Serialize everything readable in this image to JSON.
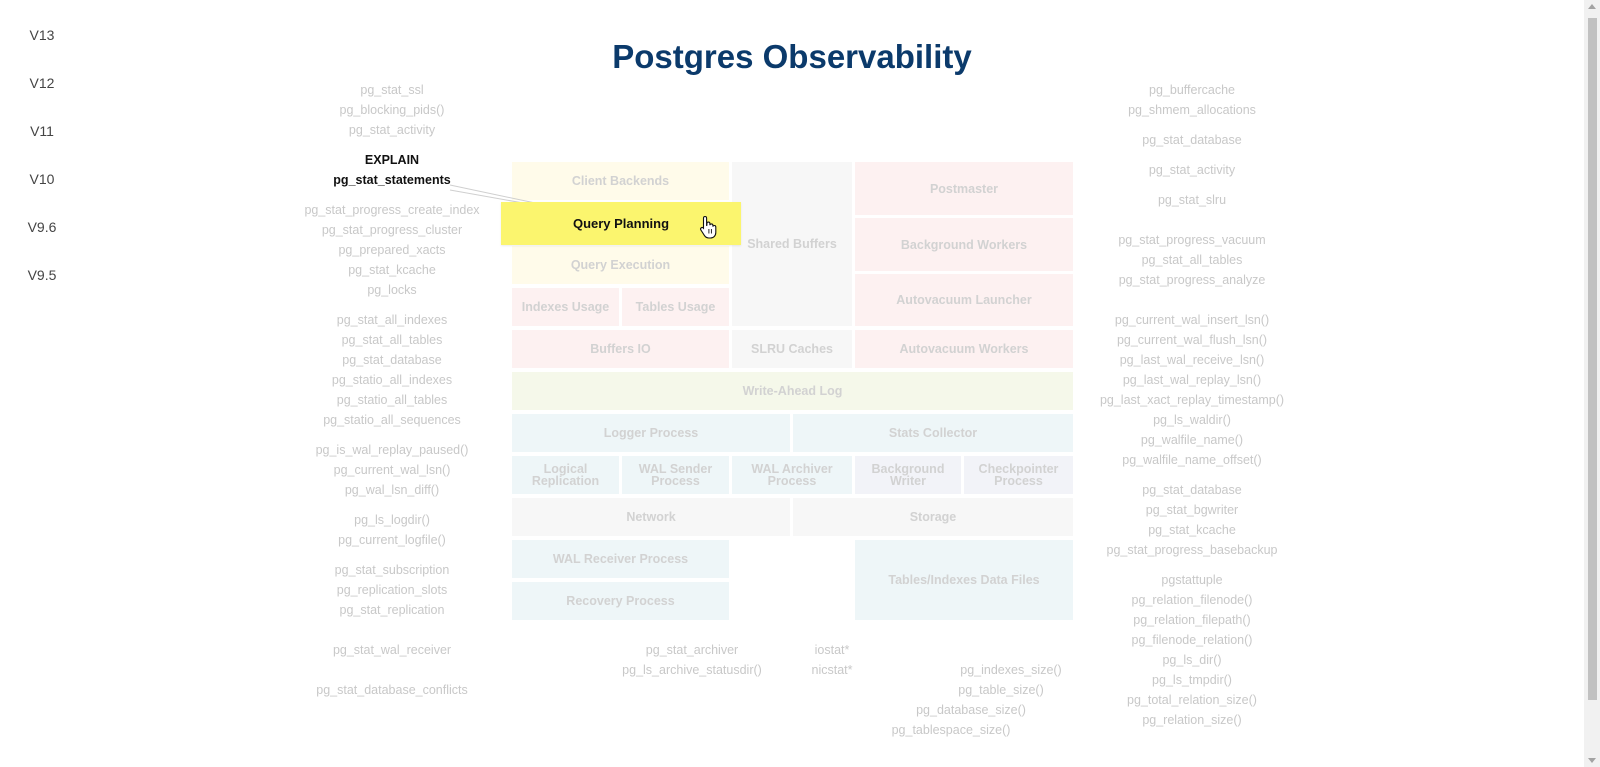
{
  "page": {
    "title": "Postgres Observability"
  },
  "versions": [
    "V13",
    "V12",
    "V11",
    "V10",
    "V9.6",
    "V9.5"
  ],
  "left_functions": {
    "g1": [
      "pg_stat_ssl",
      "pg_blocking_pids()",
      "pg_stat_activity"
    ],
    "active": [
      "EXPLAIN",
      "pg_stat_statements"
    ],
    "g2": [
      "pg_stat_progress_create_index",
      "pg_stat_progress_cluster",
      "pg_prepared_xacts",
      "pg_stat_kcache",
      "pg_locks"
    ],
    "g3": [
      "pg_stat_all_indexes",
      "pg_stat_all_tables",
      "pg_stat_database",
      "pg_statio_all_indexes",
      "pg_statio_all_tables",
      "pg_statio_all_sequences"
    ],
    "g4": [
      "pg_is_wal_replay_paused()",
      "pg_current_wal_lsn()",
      "pg_wal_lsn_diff()"
    ],
    "g5": [
      "pg_ls_logdir()",
      "pg_current_logfile()"
    ],
    "g6": [
      "pg_stat_subscription",
      "pg_replication_slots",
      "pg_stat_replication"
    ],
    "g7": [
      "pg_stat_wal_receiver"
    ],
    "g8": [
      "pg_stat_database_conflicts"
    ]
  },
  "right_functions": {
    "g1": [
      "pg_buffercache",
      "pg_shmem_allocations"
    ],
    "g2": [
      "pg_stat_database"
    ],
    "g3": [
      "pg_stat_activity"
    ],
    "g4": [
      "pg_stat_slru"
    ],
    "g5": [
      "pg_stat_progress_vacuum",
      "pg_stat_all_tables",
      "pg_stat_progress_analyze"
    ],
    "g6": [
      "pg_current_wal_insert_lsn()",
      "pg_current_wal_flush_lsn()",
      "pg_last_wal_receive_lsn()",
      "pg_last_wal_replay_lsn()",
      "pg_last_xact_replay_timestamp()",
      "pg_ls_waldir()",
      "pg_walfile_name()",
      "pg_walfile_name_offset()"
    ],
    "g7": [
      "pg_stat_database",
      "pg_stat_bgwriter",
      "pg_stat_kcache",
      "pg_stat_progress_basebackup"
    ],
    "g8": [
      "pgstattuple",
      "pg_relation_filenode()",
      "pg_relation_filepath()",
      "pg_filenode_relation()",
      "pg_ls_dir()",
      "pg_ls_tmpdir()",
      "pg_total_relation_size()",
      "pg_relation_size()"
    ]
  },
  "bottom_functions": {
    "archiver": [
      "pg_stat_archiver",
      "pg_ls_archive_statusdir()"
    ],
    "stat": [
      "iostat*",
      "nicstat*"
    ],
    "size": [
      "pg_indexes_size()",
      "pg_table_size()",
      "pg_database_size()",
      "pg_tablespace_size()"
    ]
  },
  "diagram": {
    "client_backends": "Client Backends",
    "query_planning": "Query Planning",
    "query_execution": "Query Execution",
    "indexes_usage": "Indexes Usage",
    "tables_usage": "Tables Usage",
    "buffers_io": "Buffers IO",
    "shared_buffers": "Shared Buffers",
    "slru_caches": "SLRU Caches",
    "postmaster": "Postmaster",
    "background_workers": "Background Workers",
    "autovacuum_launcher": "Autovacuum Launcher",
    "autovacuum_workers": "Autovacuum Workers",
    "write_ahead_log": "Write-Ahead Log",
    "logger_process": "Logger Process",
    "stats_collector": "Stats Collector",
    "logical_replication": "Logical Replication",
    "wal_sender_process": "WAL Sender Process",
    "wal_archiver_process": "WAL Archiver Process",
    "background_writer": "Background Writer",
    "checkpointer_process": "Checkpointer Process",
    "network": "Network",
    "storage": "Storage",
    "wal_receiver_process": "WAL Receiver Process",
    "recovery_process": "Recovery Process",
    "tables_indexes_data_files": "Tables/Indexes Data Files"
  },
  "colors": {
    "title": "#0b3a6b",
    "highlight": "#fbf56e",
    "yellow_tint": "#fffbea",
    "pink_tint": "#fdf1f1",
    "green_tint": "#f5f8ea",
    "blue_tint": "#eef6f8",
    "gray_tint": "#f7f7f7",
    "lavender_tint": "#f2f3f8"
  },
  "cursor": {
    "icon": "hand-pointer-icon"
  }
}
